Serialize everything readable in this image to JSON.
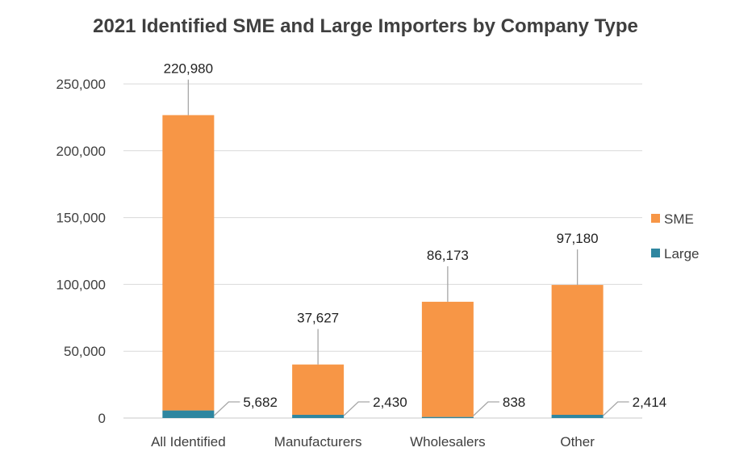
{
  "chart_data": {
    "type": "bar",
    "stacked": true,
    "title": "2021 Identified SME and Large Importers by Company Type",
    "xlabel": "",
    "ylabel": "",
    "categories": [
      "All Identified",
      "Manufacturers",
      "Wholesalers",
      "Other"
    ],
    "series": [
      {
        "name": "Large",
        "color": "#2E86A0",
        "values": [
          5682,
          2430,
          838,
          2414
        ],
        "labels": [
          "5,682",
          "2,430",
          "838",
          "2,414"
        ]
      },
      {
        "name": "SME",
        "color": "#F79646",
        "values": [
          220980,
          37627,
          86173,
          97180
        ],
        "labels": [
          "220,980",
          "37,627",
          "86,173",
          "97,180"
        ]
      }
    ],
    "ylim": [
      0,
      250000
    ],
    "yticks": [
      0,
      50000,
      100000,
      150000,
      200000,
      250000
    ],
    "ytick_labels": [
      "0",
      "50,000",
      "100,000",
      "150,000",
      "200,000",
      "250,000"
    ],
    "grid": true,
    "legend": {
      "position": "right",
      "order": [
        "SME",
        "Large"
      ]
    }
  }
}
